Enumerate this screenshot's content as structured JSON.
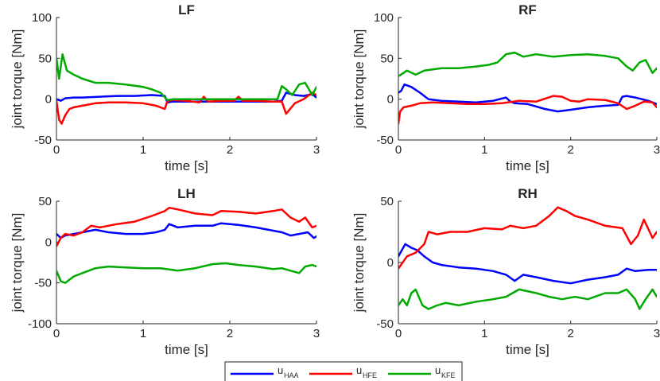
{
  "chart_data": [
    {
      "type": "line",
      "title": "LF",
      "xlabel": "time [s]",
      "ylabel": "joint torque [Nm]",
      "xlim": [
        0,
        3
      ],
      "ylim": [
        -50,
        100
      ],
      "xticks": [
        0,
        1,
        2,
        3
      ],
      "yticks": [
        -50,
        0,
        50,
        100
      ],
      "series": [
        {
          "name": "u_HAA",
          "color": "#0000ff",
          "x": [
            0,
            0.05,
            0.1,
            0.2,
            0.3,
            0.5,
            0.7,
            0.9,
            1.1,
            1.25,
            1.28,
            1.35,
            1.5,
            1.7,
            1.9,
            2.1,
            2.3,
            2.5,
            2.6,
            2.65,
            2.75,
            2.85,
            2.95,
            3.0
          ],
          "y": [
            0,
            -2,
            1,
            2,
            2,
            3,
            4,
            4,
            5,
            4,
            -4,
            -3,
            -3,
            -3,
            -3,
            -3,
            -3,
            -3,
            -2,
            8,
            5,
            4,
            6,
            2
          ]
        },
        {
          "name": "u_HFE",
          "color": "#ff0000",
          "x": [
            0,
            0.03,
            0.06,
            0.1,
            0.15,
            0.2,
            0.3,
            0.45,
            0.6,
            0.8,
            1.0,
            1.15,
            1.25,
            1.28,
            1.35,
            1.5,
            1.65,
            1.7,
            1.75,
            1.9,
            2.05,
            2.1,
            2.15,
            2.3,
            2.5,
            2.6,
            2.65,
            2.75,
            2.85,
            2.95,
            3.0
          ],
          "y": [
            -2,
            -25,
            -30,
            -20,
            -12,
            -10,
            -8,
            -5,
            -4,
            -4,
            -5,
            -8,
            -12,
            -2,
            -1,
            -2,
            -4,
            3,
            -3,
            -2,
            -2,
            3,
            -2,
            -2,
            -3,
            -3,
            -18,
            -5,
            0,
            8,
            5
          ]
        },
        {
          "name": "u_KFE",
          "color": "#00aa00",
          "x": [
            0,
            0.03,
            0.07,
            0.12,
            0.2,
            0.3,
            0.45,
            0.6,
            0.8,
            1.0,
            1.1,
            1.2,
            1.28,
            1.35,
            1.5,
            1.7,
            1.9,
            2.1,
            2.3,
            2.55,
            2.6,
            2.65,
            2.72,
            2.8,
            2.87,
            2.95,
            3.0
          ],
          "y": [
            50,
            25,
            55,
            35,
            30,
            25,
            20,
            20,
            18,
            15,
            12,
            8,
            -1,
            0,
            0,
            0,
            0,
            0,
            0,
            0,
            16,
            12,
            5,
            18,
            20,
            5,
            15
          ]
        }
      ]
    },
    {
      "type": "line",
      "title": "RF",
      "xlabel": "time [s]",
      "ylabel": "joint torque [Nm]",
      "xlim": [
        0,
        3
      ],
      "ylim": [
        -50,
        100
      ],
      "xticks": [
        0,
        1,
        2,
        3
      ],
      "yticks": [
        -50,
        0,
        50,
        100
      ],
      "series": [
        {
          "name": "u_HAA",
          "color": "#0000ff",
          "x": [
            0,
            0.03,
            0.07,
            0.15,
            0.25,
            0.35,
            0.5,
            0.7,
            0.9,
            1.1,
            1.25,
            1.3,
            1.35,
            1.5,
            1.7,
            1.85,
            2.0,
            2.2,
            2.4,
            2.55,
            2.6,
            2.65,
            2.75,
            2.9,
            3.0
          ],
          "y": [
            8,
            10,
            18,
            15,
            8,
            0,
            -2,
            -3,
            -4,
            -2,
            2,
            -3,
            -5,
            -6,
            -12,
            -15,
            -13,
            -10,
            -8,
            -7,
            3,
            4,
            2,
            -2,
            -6
          ]
        },
        {
          "name": "u_HFE",
          "color": "#ff0000",
          "x": [
            0,
            0.02,
            0.06,
            0.15,
            0.25,
            0.4,
            0.6,
            0.8,
            1.0,
            1.2,
            1.4,
            1.6,
            1.8,
            1.9,
            2.0,
            2.1,
            2.2,
            2.4,
            2.55,
            2.65,
            2.75,
            2.85,
            2.95,
            3.0
          ],
          "y": [
            -30,
            -15,
            -10,
            -8,
            -5,
            -4,
            -5,
            -6,
            -6,
            -5,
            -2,
            -3,
            4,
            3,
            -2,
            -3,
            0,
            -1,
            -5,
            -12,
            -8,
            -3,
            -4,
            -10
          ]
        },
        {
          "name": "u_KFE",
          "color": "#00aa00",
          "x": [
            0,
            0.1,
            0.2,
            0.3,
            0.5,
            0.7,
            0.9,
            1.05,
            1.15,
            1.25,
            1.35,
            1.45,
            1.6,
            1.8,
            2.0,
            2.2,
            2.4,
            2.55,
            2.65,
            2.72,
            2.8,
            2.87,
            2.95,
            3.0
          ],
          "y": [
            28,
            35,
            30,
            35,
            38,
            38,
            40,
            42,
            45,
            55,
            57,
            52,
            55,
            52,
            54,
            55,
            53,
            50,
            40,
            35,
            45,
            48,
            32,
            38
          ]
        }
      ]
    },
    {
      "type": "line",
      "title": "LH",
      "xlabel": "time [s]",
      "ylabel": "joint torque [Nm]",
      "xlim": [
        0,
        3
      ],
      "ylim": [
        -100,
        50
      ],
      "xticks": [
        0,
        1,
        2,
        3
      ],
      "yticks": [
        -100,
        -50,
        0,
        50
      ],
      "series": [
        {
          "name": "u_HAA",
          "color": "#0000ff",
          "x": [
            0,
            0.05,
            0.1,
            0.2,
            0.3,
            0.45,
            0.6,
            0.8,
            1.0,
            1.15,
            1.25,
            1.3,
            1.4,
            1.6,
            1.8,
            1.9,
            2.1,
            2.3,
            2.5,
            2.6,
            2.7,
            2.8,
            2.9,
            2.97,
            3.0
          ],
          "y": [
            10,
            5,
            8,
            10,
            12,
            15,
            12,
            10,
            10,
            12,
            15,
            22,
            18,
            20,
            20,
            23,
            21,
            18,
            14,
            12,
            8,
            10,
            12,
            5,
            7
          ]
        },
        {
          "name": "u_HFE",
          "color": "#ff0000",
          "x": [
            0,
            0.05,
            0.1,
            0.2,
            0.3,
            0.4,
            0.5,
            0.7,
            0.9,
            1.1,
            1.25,
            1.3,
            1.4,
            1.6,
            1.8,
            1.9,
            2.1,
            2.3,
            2.5,
            2.6,
            2.7,
            2.8,
            2.87,
            2.95,
            3.0
          ],
          "y": [
            -5,
            5,
            10,
            8,
            12,
            20,
            18,
            22,
            25,
            32,
            38,
            42,
            40,
            35,
            33,
            38,
            37,
            35,
            38,
            40,
            30,
            25,
            30,
            18,
            20
          ]
        },
        {
          "name": "u_KFE",
          "color": "#00aa00",
          "x": [
            0,
            0.05,
            0.1,
            0.2,
            0.3,
            0.45,
            0.6,
            0.8,
            1.0,
            1.2,
            1.4,
            1.6,
            1.8,
            1.95,
            2.1,
            2.3,
            2.5,
            2.6,
            2.7,
            2.8,
            2.87,
            2.95,
            3.0
          ],
          "y": [
            -35,
            -48,
            -50,
            -42,
            -38,
            -32,
            -30,
            -31,
            -32,
            -32,
            -35,
            -32,
            -27,
            -26,
            -28,
            -30,
            -33,
            -32,
            -35,
            -38,
            -30,
            -28,
            -30
          ]
        }
      ]
    },
    {
      "type": "line",
      "title": "RH",
      "xlabel": "time [s]",
      "ylabel": "joint torque [Nm]",
      "xlim": [
        0,
        3
      ],
      "ylim": [
        -50,
        50
      ],
      "xticks": [
        0,
        1,
        2,
        3
      ],
      "yticks": [
        -50,
        0,
        50
      ],
      "series": [
        {
          "name": "u_HAA",
          "color": "#0000ff",
          "x": [
            0,
            0.04,
            0.08,
            0.15,
            0.22,
            0.3,
            0.4,
            0.5,
            0.7,
            0.9,
            1.1,
            1.25,
            1.35,
            1.45,
            1.6,
            1.8,
            2.0,
            2.2,
            2.4,
            2.55,
            2.65,
            2.75,
            2.9,
            3.0
          ],
          "y": [
            5,
            10,
            15,
            12,
            10,
            5,
            0,
            -2,
            -4,
            -5,
            -7,
            -10,
            -15,
            -10,
            -12,
            -15,
            -17,
            -14,
            -12,
            -10,
            -5,
            -7,
            -6,
            -6
          ]
        },
        {
          "name": "u_HFE",
          "color": "#ff0000",
          "x": [
            0,
            0.05,
            0.1,
            0.2,
            0.3,
            0.35,
            0.45,
            0.6,
            0.8,
            1.0,
            1.2,
            1.3,
            1.45,
            1.6,
            1.75,
            1.85,
            1.95,
            2.05,
            2.2,
            2.4,
            2.6,
            2.7,
            2.78,
            2.85,
            2.95,
            3.0
          ],
          "y": [
            -5,
            0,
            5,
            8,
            15,
            25,
            23,
            25,
            25,
            28,
            27,
            30,
            28,
            30,
            38,
            45,
            42,
            38,
            35,
            30,
            28,
            15,
            22,
            35,
            20,
            25
          ]
        },
        {
          "name": "u_KFE",
          "color": "#00aa00",
          "x": [
            0,
            0.05,
            0.1,
            0.15,
            0.2,
            0.28,
            0.35,
            0.45,
            0.55,
            0.7,
            0.9,
            1.1,
            1.25,
            1.4,
            1.6,
            1.75,
            1.9,
            2.05,
            2.2,
            2.4,
            2.55,
            2.65,
            2.75,
            2.8,
            2.87,
            2.95,
            3.0
          ],
          "y": [
            -35,
            -30,
            -35,
            -25,
            -22,
            -35,
            -38,
            -35,
            -33,
            -35,
            -32,
            -30,
            -28,
            -22,
            -25,
            -28,
            -30,
            -28,
            -30,
            -25,
            -25,
            -22,
            -30,
            -38,
            -30,
            -22,
            -28
          ]
        }
      ]
    }
  ],
  "legend": {
    "items": [
      {
        "label": "u",
        "sub": "HAA",
        "color": "#0000ff"
      },
      {
        "label": "u",
        "sub": "HFE",
        "color": "#ff0000"
      },
      {
        "label": "u",
        "sub": "KFE",
        "color": "#00aa00"
      }
    ]
  }
}
